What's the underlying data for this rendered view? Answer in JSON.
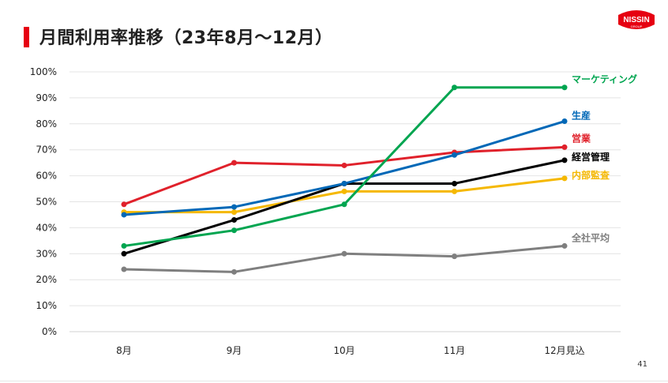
{
  "header": {
    "title": "月間利用率推移（23年8月～12月）",
    "logo_text": "NISSIN",
    "logo_subtext": "GROUP"
  },
  "footer": {
    "page_number": "41"
  },
  "colors": {
    "accent": "#e60012"
  },
  "chart_data": {
    "type": "line",
    "categories": [
      "8月",
      "9月",
      "10月",
      "11月",
      "12月見込"
    ],
    "ylim": [
      0,
      100
    ],
    "y_ticks": [
      0,
      10,
      20,
      30,
      40,
      50,
      60,
      70,
      80,
      90,
      100
    ],
    "y_tick_labels": [
      "0%",
      "10%",
      "20%",
      "30%",
      "40%",
      "50%",
      "60%",
      "70%",
      "80%",
      "90%",
      "100%"
    ],
    "grid": true,
    "legend": "inline labels at line ends",
    "series": [
      {
        "name": "全社平均",
        "color": "#7f7f7f",
        "values": [
          24,
          23,
          30,
          29,
          33
        ]
      },
      {
        "name": "内部監査",
        "color": "#f5b800",
        "values": [
          46,
          46,
          54,
          54,
          59
        ]
      },
      {
        "name": "経営管理",
        "color": "#000000",
        "values": [
          30,
          43,
          57,
          57,
          66
        ]
      },
      {
        "name": "営業",
        "color": "#e0212b",
        "values": [
          49,
          65,
          64,
          69,
          71
        ]
      },
      {
        "name": "生産",
        "color": "#0068b7",
        "values": [
          45,
          48,
          57,
          68,
          81
        ]
      },
      {
        "name": "マーケティング",
        "color": "#00a550",
        "values": [
          33,
          39,
          49,
          94,
          94
        ]
      }
    ]
  }
}
